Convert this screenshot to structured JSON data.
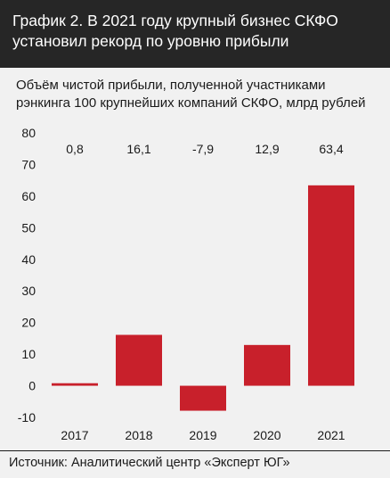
{
  "header": {
    "title": "График 2. В 2021 году крупный бизнес СКФО установил рекорд по уровню прибыли"
  },
  "source": "Источник: Аналитический центр «Эксперт ЮГ»",
  "colors": {
    "header_bg": "#262626",
    "background": "#f1f1f1",
    "bar": "#c8202b"
  },
  "chart_data": {
    "type": "bar",
    "title": "Объём чистой прибыли, полученной участниками рэнкинга 100 крупнейших компаний СКФО, млрд рублей",
    "categories": [
      "2017",
      "2018",
      "2019",
      "2020",
      "2021"
    ],
    "values": [
      0.8,
      16.1,
      -7.9,
      12.9,
      63.4
    ],
    "value_labels": [
      "0,8",
      "16,1",
      "-7,9",
      "12,9",
      "63,4"
    ],
    "y_ticks": [
      80,
      70,
      60,
      50,
      40,
      30,
      20,
      10,
      0,
      -10
    ],
    "ylim": [
      -10,
      80
    ],
    "grid": false,
    "legend": "none"
  }
}
